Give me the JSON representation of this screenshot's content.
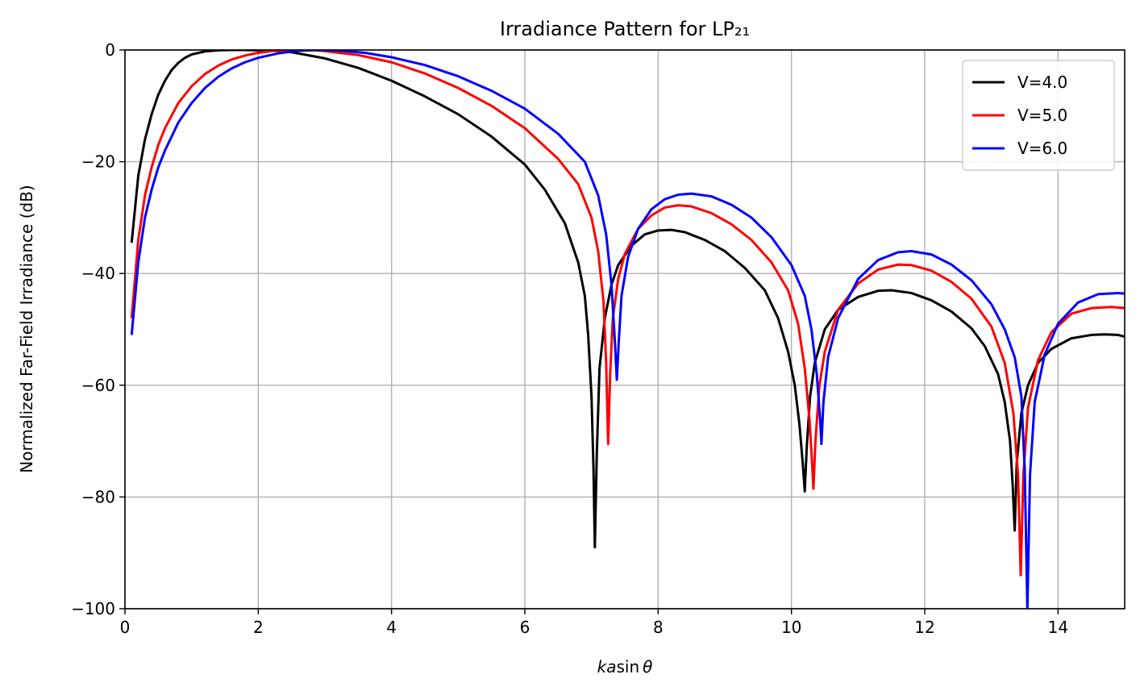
{
  "chart_data": {
    "type": "line",
    "title": "Irradiance Pattern for LP₂₁",
    "xlabel": "ka sin θ",
    "ylabel": "Normalized Far-Field Irradiance (dB)",
    "xlim": [
      0,
      15
    ],
    "ylim": [
      -100,
      0
    ],
    "xticks": [
      0,
      2,
      4,
      6,
      8,
      10,
      12,
      14
    ],
    "yticks": [
      0,
      -20,
      -40,
      -60,
      -80,
      -100
    ],
    "xtick_labels": [
      "0",
      "2",
      "4",
      "6",
      "8",
      "10",
      "12",
      "14"
    ],
    "ytick_labels": [
      "0",
      "−20",
      "−40",
      "−60",
      "−80",
      "−100"
    ],
    "grid": true,
    "legend_position": "top-right",
    "series": [
      {
        "name": "V=4.0",
        "color": "#000000",
        "points": [
          [
            0.1,
            -34.5
          ],
          [
            0.2,
            -22.5
          ],
          [
            0.3,
            -16
          ],
          [
            0.4,
            -11.5
          ],
          [
            0.5,
            -8
          ],
          [
            0.6,
            -5.5
          ],
          [
            0.7,
            -3.6
          ],
          [
            0.8,
            -2.3
          ],
          [
            0.9,
            -1.4
          ],
          [
            1.0,
            -0.8
          ],
          [
            1.2,
            -0.25
          ],
          [
            1.4,
            -0.05
          ],
          [
            1.6,
            0
          ],
          [
            1.8,
            0
          ],
          [
            2.0,
            -0.05
          ],
          [
            2.2,
            -0.1
          ],
          [
            2.5,
            -0.4
          ],
          [
            3.0,
            -1.5
          ],
          [
            3.5,
            -3.2
          ],
          [
            4.0,
            -5.5
          ],
          [
            4.5,
            -8.3
          ],
          [
            5.0,
            -11.5
          ],
          [
            5.5,
            -15.5
          ],
          [
            6.0,
            -20.5
          ],
          [
            6.3,
            -25
          ],
          [
            6.6,
            -31
          ],
          [
            6.8,
            -38
          ],
          [
            6.9,
            -44
          ],
          [
            6.95,
            -51
          ],
          [
            7.0,
            -62
          ],
          [
            7.03,
            -75
          ],
          [
            7.05,
            -89
          ],
          [
            7.08,
            -72
          ],
          [
            7.12,
            -57
          ],
          [
            7.2,
            -48
          ],
          [
            7.3,
            -42
          ],
          [
            7.4,
            -38.5
          ],
          [
            7.6,
            -35
          ],
          [
            7.8,
            -33
          ],
          [
            8.0,
            -32.3
          ],
          [
            8.2,
            -32.2
          ],
          [
            8.4,
            -32.6
          ],
          [
            8.7,
            -34
          ],
          [
            9.0,
            -36
          ],
          [
            9.3,
            -39
          ],
          [
            9.6,
            -43
          ],
          [
            9.8,
            -48
          ],
          [
            9.95,
            -54
          ],
          [
            10.05,
            -60
          ],
          [
            10.12,
            -67
          ],
          [
            10.17,
            -74
          ],
          [
            10.2,
            -79
          ],
          [
            10.23,
            -71
          ],
          [
            10.28,
            -62
          ],
          [
            10.35,
            -56
          ],
          [
            10.5,
            -50
          ],
          [
            10.7,
            -46.5
          ],
          [
            11.0,
            -44.2
          ],
          [
            11.3,
            -43.1
          ],
          [
            11.5,
            -43
          ],
          [
            11.8,
            -43.5
          ],
          [
            12.1,
            -44.8
          ],
          [
            12.4,
            -46.8
          ],
          [
            12.7,
            -49.8
          ],
          [
            12.9,
            -53
          ],
          [
            13.1,
            -58
          ],
          [
            13.2,
            -63
          ],
          [
            13.28,
            -70
          ],
          [
            13.32,
            -78
          ],
          [
            13.35,
            -86
          ],
          [
            13.38,
            -74
          ],
          [
            13.45,
            -65
          ],
          [
            13.55,
            -60
          ],
          [
            13.7,
            -56
          ],
          [
            13.9,
            -53.5
          ],
          [
            14.2,
            -51.6
          ],
          [
            14.5,
            -51
          ],
          [
            14.7,
            -50.9
          ],
          [
            14.9,
            -51
          ],
          [
            15.0,
            -51.3
          ]
        ]
      },
      {
        "name": "V=5.0",
        "color": "#ff0000",
        "points": [
          [
            0.1,
            -48
          ],
          [
            0.2,
            -34
          ],
          [
            0.3,
            -26
          ],
          [
            0.4,
            -21
          ],
          [
            0.5,
            -17
          ],
          [
            0.6,
            -14
          ],
          [
            0.8,
            -9.5
          ],
          [
            1.0,
            -6.5
          ],
          [
            1.2,
            -4.3
          ],
          [
            1.4,
            -2.8
          ],
          [
            1.6,
            -1.7
          ],
          [
            1.8,
            -1.0
          ],
          [
            2.0,
            -0.5
          ],
          [
            2.2,
            -0.2
          ],
          [
            2.5,
            0
          ],
          [
            2.8,
            0
          ],
          [
            3.0,
            -0.2
          ],
          [
            3.5,
            -0.9
          ],
          [
            4.0,
            -2.2
          ],
          [
            4.5,
            -4.2
          ],
          [
            5.0,
            -6.8
          ],
          [
            5.5,
            -10
          ],
          [
            6.0,
            -14
          ],
          [
            6.5,
            -19.5
          ],
          [
            6.8,
            -24
          ],
          [
            7.0,
            -30
          ],
          [
            7.1,
            -36
          ],
          [
            7.18,
            -45
          ],
          [
            7.22,
            -56
          ],
          [
            7.25,
            -70.5
          ],
          [
            7.28,
            -58
          ],
          [
            7.32,
            -48
          ],
          [
            7.4,
            -41
          ],
          [
            7.5,
            -36.5
          ],
          [
            7.7,
            -32
          ],
          [
            7.9,
            -29.6
          ],
          [
            8.1,
            -28.2
          ],
          [
            8.3,
            -27.8
          ],
          [
            8.5,
            -28
          ],
          [
            8.8,
            -29.2
          ],
          [
            9.1,
            -31.2
          ],
          [
            9.4,
            -34
          ],
          [
            9.7,
            -38
          ],
          [
            9.95,
            -43
          ],
          [
            10.1,
            -49
          ],
          [
            10.2,
            -57
          ],
          [
            10.27,
            -66
          ],
          [
            10.31,
            -74
          ],
          [
            10.33,
            -78.5
          ],
          [
            10.36,
            -70
          ],
          [
            10.42,
            -60
          ],
          [
            10.5,
            -54
          ],
          [
            10.7,
            -46.5
          ],
          [
            11.0,
            -41.8
          ],
          [
            11.3,
            -39.3
          ],
          [
            11.6,
            -38.4
          ],
          [
            11.8,
            -38.5
          ],
          [
            12.1,
            -39.5
          ],
          [
            12.4,
            -41.5
          ],
          [
            12.7,
            -44.5
          ],
          [
            13.0,
            -49.5
          ],
          [
            13.2,
            -56
          ],
          [
            13.33,
            -65
          ],
          [
            13.4,
            -76
          ],
          [
            13.44,
            -94
          ],
          [
            13.48,
            -76
          ],
          [
            13.55,
            -64
          ],
          [
            13.7,
            -55.5
          ],
          [
            13.9,
            -50.5
          ],
          [
            14.2,
            -47.2
          ],
          [
            14.5,
            -46.2
          ],
          [
            14.8,
            -46
          ],
          [
            15.0,
            -46.2
          ]
        ]
      },
      {
        "name": "V=6.0",
        "color": "#0000ff",
        "points": [
          [
            0.1,
            -51
          ],
          [
            0.2,
            -38
          ],
          [
            0.3,
            -30
          ],
          [
            0.4,
            -25
          ],
          [
            0.5,
            -21
          ],
          [
            0.6,
            -18
          ],
          [
            0.8,
            -13
          ],
          [
            1.0,
            -9.5
          ],
          [
            1.2,
            -6.8
          ],
          [
            1.4,
            -4.8
          ],
          [
            1.6,
            -3.3
          ],
          [
            1.8,
            -2.2
          ],
          [
            2.0,
            -1.4
          ],
          [
            2.3,
            -0.6
          ],
          [
            2.6,
            -0.15
          ],
          [
            2.9,
            0
          ],
          [
            3.2,
            -0.1
          ],
          [
            3.6,
            -0.5
          ],
          [
            4.0,
            -1.3
          ],
          [
            4.5,
            -2.7
          ],
          [
            5.0,
            -4.7
          ],
          [
            5.5,
            -7.3
          ],
          [
            6.0,
            -10.5
          ],
          [
            6.5,
            -15
          ],
          [
            6.9,
            -20
          ],
          [
            7.1,
            -26
          ],
          [
            7.22,
            -33
          ],
          [
            7.3,
            -42
          ],
          [
            7.35,
            -52
          ],
          [
            7.38,
            -59
          ],
          [
            7.41,
            -52
          ],
          [
            7.45,
            -44
          ],
          [
            7.55,
            -37
          ],
          [
            7.7,
            -32
          ],
          [
            7.9,
            -28.5
          ],
          [
            8.1,
            -26.7
          ],
          [
            8.3,
            -25.9
          ],
          [
            8.5,
            -25.7
          ],
          [
            8.8,
            -26.2
          ],
          [
            9.1,
            -27.7
          ],
          [
            9.4,
            -30
          ],
          [
            9.7,
            -33.5
          ],
          [
            10.0,
            -38.5
          ],
          [
            10.2,
            -44
          ],
          [
            10.3,
            -50
          ],
          [
            10.38,
            -58
          ],
          [
            10.43,
            -66
          ],
          [
            10.45,
            -70.5
          ],
          [
            10.48,
            -63
          ],
          [
            10.55,
            -55
          ],
          [
            10.7,
            -48
          ],
          [
            11.0,
            -41
          ],
          [
            11.3,
            -37.6
          ],
          [
            11.6,
            -36.2
          ],
          [
            11.8,
            -36
          ],
          [
            12.1,
            -36.6
          ],
          [
            12.4,
            -38.4
          ],
          [
            12.7,
            -41.2
          ],
          [
            13.0,
            -45.5
          ],
          [
            13.2,
            -50
          ],
          [
            13.35,
            -55
          ],
          [
            13.45,
            -62
          ],
          [
            13.5,
            -75
          ],
          [
            13.54,
            -100
          ],
          [
            13.58,
            -76
          ],
          [
            13.65,
            -63
          ],
          [
            13.8,
            -54.5
          ],
          [
            14.0,
            -49
          ],
          [
            14.3,
            -45.2
          ],
          [
            14.6,
            -43.7
          ],
          [
            14.9,
            -43.5
          ],
          [
            15.0,
            -43.6
          ]
        ]
      }
    ]
  }
}
